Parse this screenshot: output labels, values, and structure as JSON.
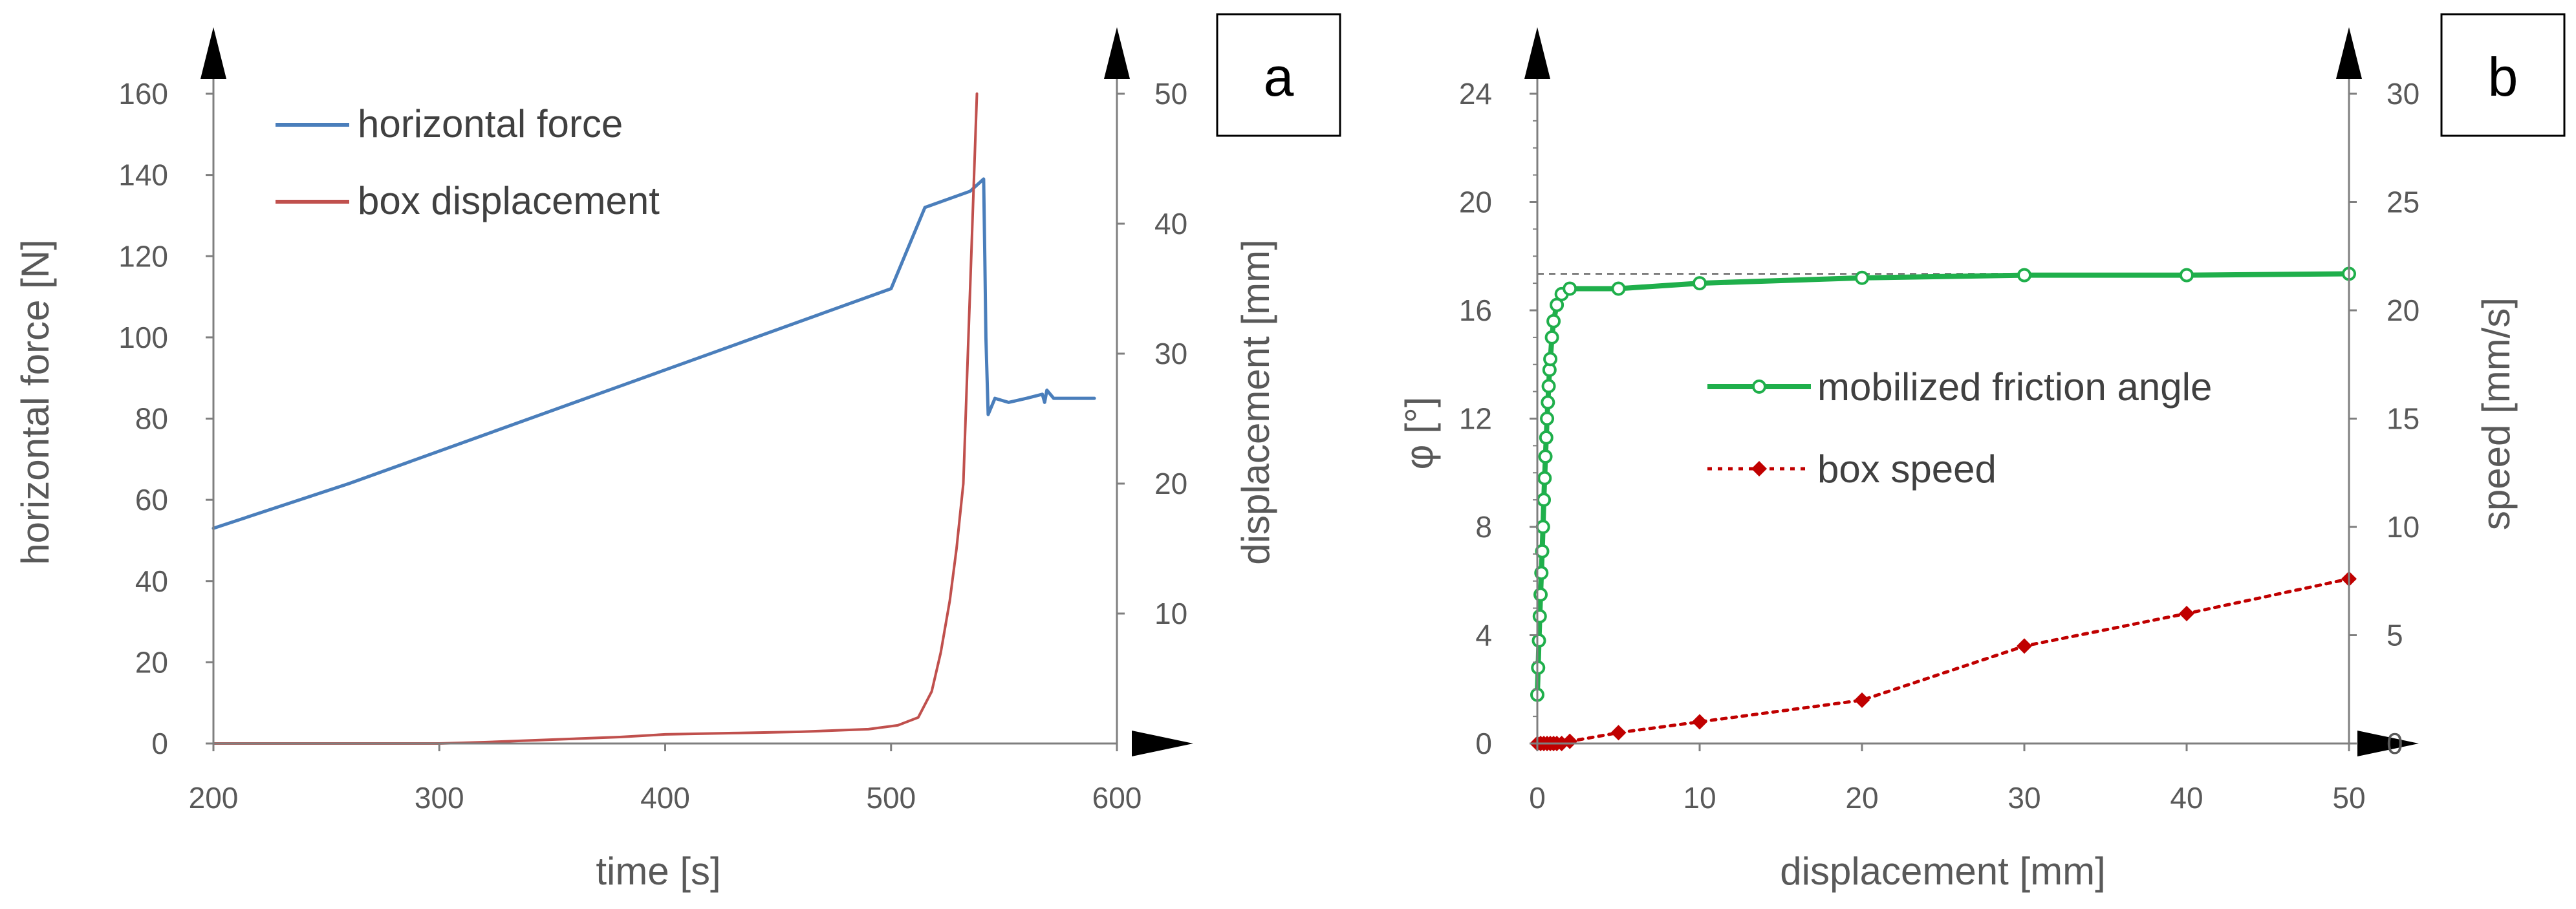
{
  "chart_data": [
    {
      "panel_label": "a",
      "type": "line",
      "xlabel": "time [s]",
      "ylabel": "horizontal force [N]",
      "y2label": "displacement [mm]",
      "xlim": [
        200,
        600
      ],
      "ylim": [
        0,
        160
      ],
      "y2lim": [
        0,
        50
      ],
      "xticks": [
        "200",
        "300",
        "400",
        "500",
        "600"
      ],
      "yticks": [
        "0",
        "20",
        "40",
        "60",
        "80",
        "100",
        "120",
        "140",
        "160"
      ],
      "y2ticks": [
        "10",
        "20",
        "30",
        "40",
        "50"
      ],
      "legend_position": "top-left",
      "series": [
        {
          "name": "horizontal force",
          "axis": "left",
          "color": "#4a7ebb",
          "x": [
            200,
            260,
            320,
            380,
            440,
            500,
            515,
            525,
            535,
            541,
            541.5,
            542,
            543,
            546,
            552,
            560,
            567,
            568,
            569,
            572,
            580,
            590
          ],
          "y": [
            53,
            64,
            76,
            88,
            100,
            112,
            132,
            134,
            136,
            139,
            120,
            100,
            81,
            85,
            84,
            85,
            86,
            84,
            87,
            85,
            85,
            85
          ]
        },
        {
          "name": "box displacement",
          "axis": "right",
          "color": "#c0504d",
          "x": [
            200,
            300,
            320,
            350,
            380,
            400,
            430,
            460,
            490,
            503,
            512,
            518,
            522,
            526,
            529,
            532,
            534,
            536,
            538
          ],
          "y": [
            0,
            0,
            0.1,
            0.3,
            0.5,
            0.7,
            0.8,
            0.9,
            1.1,
            1.4,
            2,
            4,
            7,
            11,
            15,
            20,
            30,
            40,
            50
          ]
        }
      ]
    },
    {
      "panel_label": "b",
      "type": "line",
      "xlabel": "displacement [mm]",
      "ylabel": "φ [°]",
      "y2label": "speed [mm/s]",
      "xlim": [
        0,
        50
      ],
      "ylim": [
        0,
        24
      ],
      "y2lim": [
        0,
        30
      ],
      "xticks": [
        "0",
        "10",
        "20",
        "30",
        "40",
        "50"
      ],
      "yticks": [
        "0",
        "4",
        "8",
        "12",
        "16",
        "20",
        "24"
      ],
      "y2ticks": [
        "0",
        "5",
        "10",
        "15",
        "20",
        "25",
        "30"
      ],
      "reference_line_y": 17.35,
      "legend_position": "center",
      "series": [
        {
          "name": "mobilized friction angle",
          "axis": "left",
          "color": "#1faf4b",
          "x": [
            0,
            0.05,
            0.1,
            0.15,
            0.2,
            0.25,
            0.3,
            0.35,
            0.4,
            0.45,
            0.5,
            0.55,
            0.6,
            0.65,
            0.7,
            0.75,
            0.8,
            0.9,
            1.0,
            1.2,
            1.5,
            2,
            5,
            10,
            20,
            30,
            40,
            50
          ],
          "y": [
            1.8,
            2.8,
            3.8,
            4.7,
            5.5,
            6.3,
            7.1,
            8.0,
            9.0,
            9.8,
            10.6,
            11.3,
            12.0,
            12.6,
            13.2,
            13.8,
            14.2,
            15.0,
            15.6,
            16.2,
            16.6,
            16.8,
            16.8,
            17.0,
            17.2,
            17.3,
            17.3,
            17.35
          ]
        },
        {
          "name": "box speed",
          "axis": "right",
          "color": "#c00000",
          "x": [
            0,
            0.2,
            0.4,
            0.6,
            0.8,
            1,
            1.2,
            1.5,
            2,
            5,
            10,
            20,
            30,
            40,
            50
          ],
          "y": [
            0,
            0,
            0,
            0,
            0,
            0,
            0,
            0,
            0.1,
            0.5,
            1,
            2,
            4.5,
            6,
            7.6
          ]
        }
      ]
    }
  ]
}
